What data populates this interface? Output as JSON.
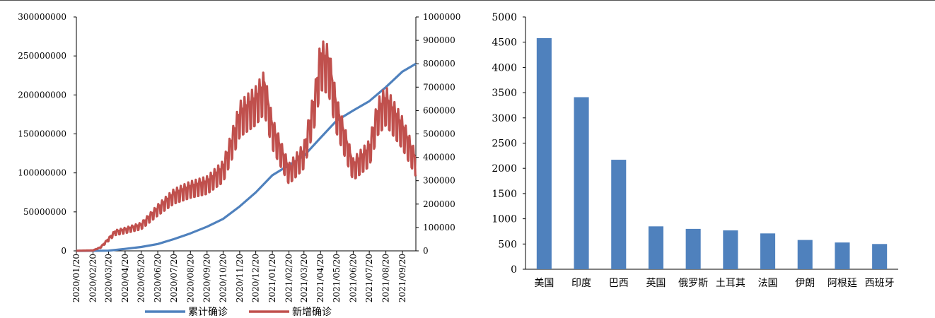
{
  "chart_data": [
    {
      "type": "line",
      "title": "",
      "x_ticks": [
        "2020/01/20",
        "2020/02/20",
        "2020/03/20",
        "2020/04/20",
        "2020/05/20",
        "2020/06/20",
        "2020/07/20",
        "2020/08/20",
        "2020/09/20",
        "2020/10/20",
        "2020/11/20",
        "2020/12/20",
        "2021/01/20",
        "2021/02/20",
        "2021/03/20",
        "2021/04/20",
        "2021/05/20",
        "2021/06/20",
        "2021/07/20",
        "2021/08/20",
        "2021/09/20"
      ],
      "y_left": {
        "ylim": [
          0,
          300000000
        ],
        "ticks": [
          "0",
          "50000000",
          "100000000",
          "150000000",
          "200000000",
          "250000000",
          "300000000"
        ]
      },
      "y_right": {
        "ylim": [
          0,
          1000000
        ],
        "ticks": [
          "0",
          "100000",
          "200000",
          "300000",
          "400000",
          "500000",
          "600000",
          "700000",
          "800000",
          "900000",
          "1000000"
        ]
      },
      "series": [
        {
          "name": "累计确诊",
          "axis": "left",
          "color": "#4F81BD",
          "x": [
            "2020/01/20",
            "2020/02/20",
            "2020/03/20",
            "2020/04/20",
            "2020/05/20",
            "2020/06/20",
            "2020/07/20",
            "2020/08/20",
            "2020/09/20",
            "2020/10/20",
            "2020/11/20",
            "2020/12/20",
            "2021/01/20",
            "2021/02/20",
            "2021/03/20",
            "2021/04/20",
            "2021/05/20",
            "2021/06/20",
            "2021/07/20",
            "2021/08/20",
            "2021/09/20",
            "2021/10/15"
          ],
          "values": [
            0,
            80000,
            250000,
            2500000,
            5000000,
            8800000,
            15000000,
            22500000,
            31000000,
            41000000,
            57000000,
            75000000,
            97000000,
            110000000,
            122000000,
            145000000,
            167000000,
            180000000,
            192000000,
            210000000,
            230000000,
            240000000
          ]
        },
        {
          "name": "新增确诊",
          "axis": "right",
          "color": "#C0504D",
          "x": [
            "2020/01/20",
            "2020/02/20",
            "2020/03/05",
            "2020/03/20",
            "2020/04/01",
            "2020/04/20",
            "2020/05/20",
            "2020/06/20",
            "2020/07/20",
            "2020/08/20",
            "2020/09/20",
            "2020/10/20",
            "2020/11/10",
            "2020/11/20",
            "2020/12/20",
            "2021/01/05",
            "2021/01/20",
            "2021/02/20",
            "2021/03/20",
            "2021/04/10",
            "2021/04/20",
            "2021/05/05",
            "2021/05/20",
            "2021/06/20",
            "2021/07/20",
            "2021/08/05",
            "2021/08/20",
            "2021/09/20",
            "2021/10/15"
          ],
          "values": [
            500,
            2000,
            15000,
            50000,
            80000,
            90000,
            110000,
            180000,
            240000,
            270000,
            290000,
            350000,
            500000,
            580000,
            640000,
            700000,
            520000,
            340000,
            420000,
            650000,
            820000,
            800000,
            600000,
            360000,
            430000,
            590000,
            640000,
            520000,
            380000
          ]
        }
      ],
      "legend": "bottom",
      "grid": false
    },
    {
      "type": "bar",
      "title": "",
      "categories": [
        "美国",
        "印度",
        "巴西",
        "英国",
        "俄罗斯",
        "土耳其",
        "法国",
        "伊朗",
        "阿根廷",
        "西班牙"
      ],
      "values": [
        4580,
        3410,
        2170,
        850,
        800,
        770,
        710,
        580,
        530,
        500
      ],
      "ylim": [
        0,
        5000
      ],
      "y_ticks": [
        "0",
        "500",
        "1000",
        "1500",
        "2000",
        "2500",
        "3000",
        "3500",
        "4000",
        "4500",
        "5000"
      ],
      "color": "#4F81BD",
      "grid": false
    }
  ]
}
